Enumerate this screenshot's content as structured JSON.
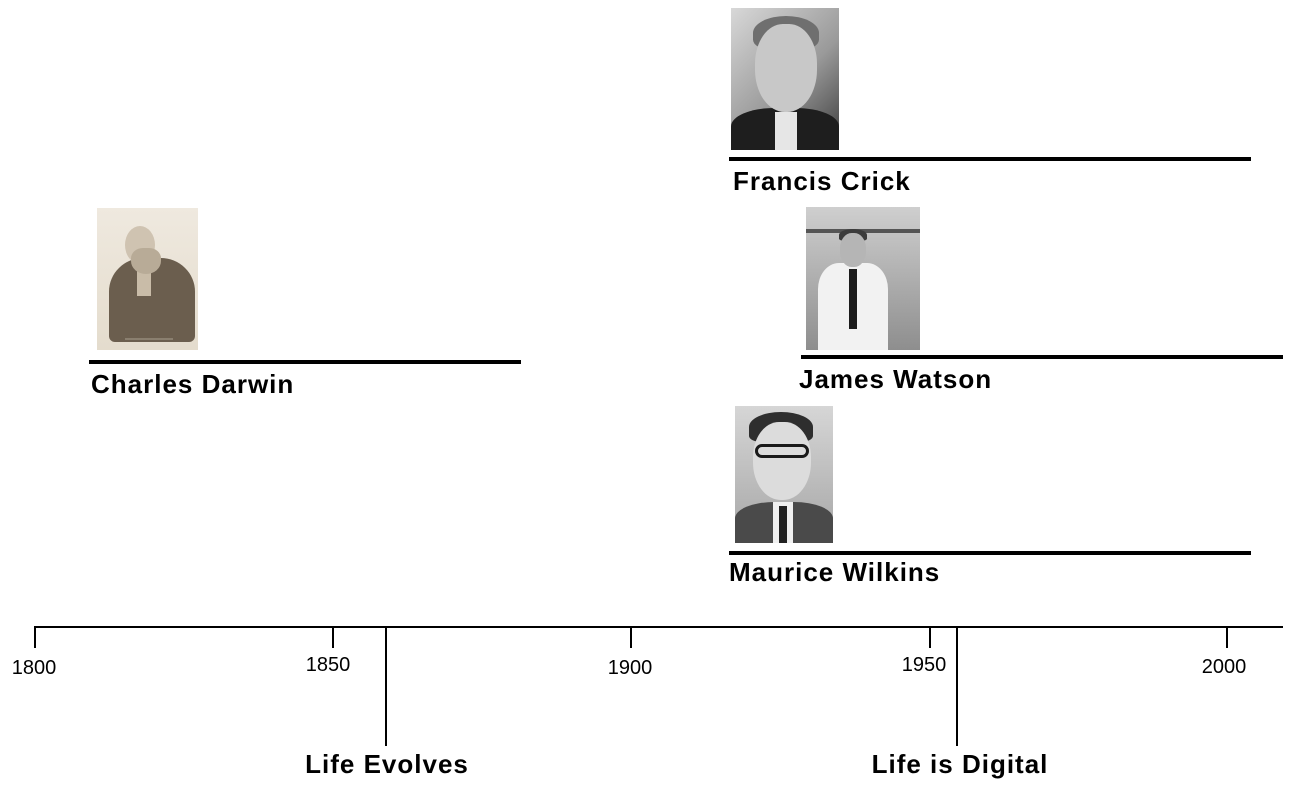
{
  "people": {
    "darwin": {
      "name": "Charles Darwin"
    },
    "crick": {
      "name": "Francis Crick"
    },
    "watson": {
      "name": "James Watson"
    },
    "wilkins": {
      "name": "Maurice Wilkins"
    }
  },
  "axis": {
    "ticks": [
      "1800",
      "1850",
      "1900",
      "1950",
      "2000"
    ]
  },
  "events": {
    "evolves": "Life Evolves",
    "digital": "Life is Digital"
  }
}
